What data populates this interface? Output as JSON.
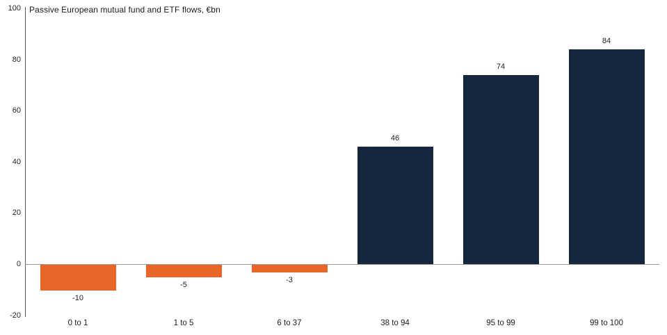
{
  "chart_data": {
    "type": "bar",
    "title": "Passive European mutual fund and ETF flows, €bn",
    "categories": [
      "0 to 1",
      "1 to 5",
      "6 to 37",
      "38 to 94",
      "95 to 99",
      "99 to 100"
    ],
    "values": [
      -10,
      -5,
      -3,
      46,
      74,
      84
    ],
    "data_labels": [
      "-10",
      "-5",
      "-3",
      "46",
      "74",
      "84"
    ],
    "xlabel": "",
    "ylabel": "",
    "ylim": [
      -20,
      100
    ],
    "yticks": [
      100,
      80,
      60,
      40,
      20,
      0,
      -20
    ],
    "grid": false,
    "legend": false,
    "colors": {
      "positive_bar": "#16263C",
      "negative_bar": "#E96528",
      "axis_line": "#595959",
      "zero_line": "#9b9b9b",
      "text": "#1f1f1f",
      "background": "#ffffff"
    }
  }
}
